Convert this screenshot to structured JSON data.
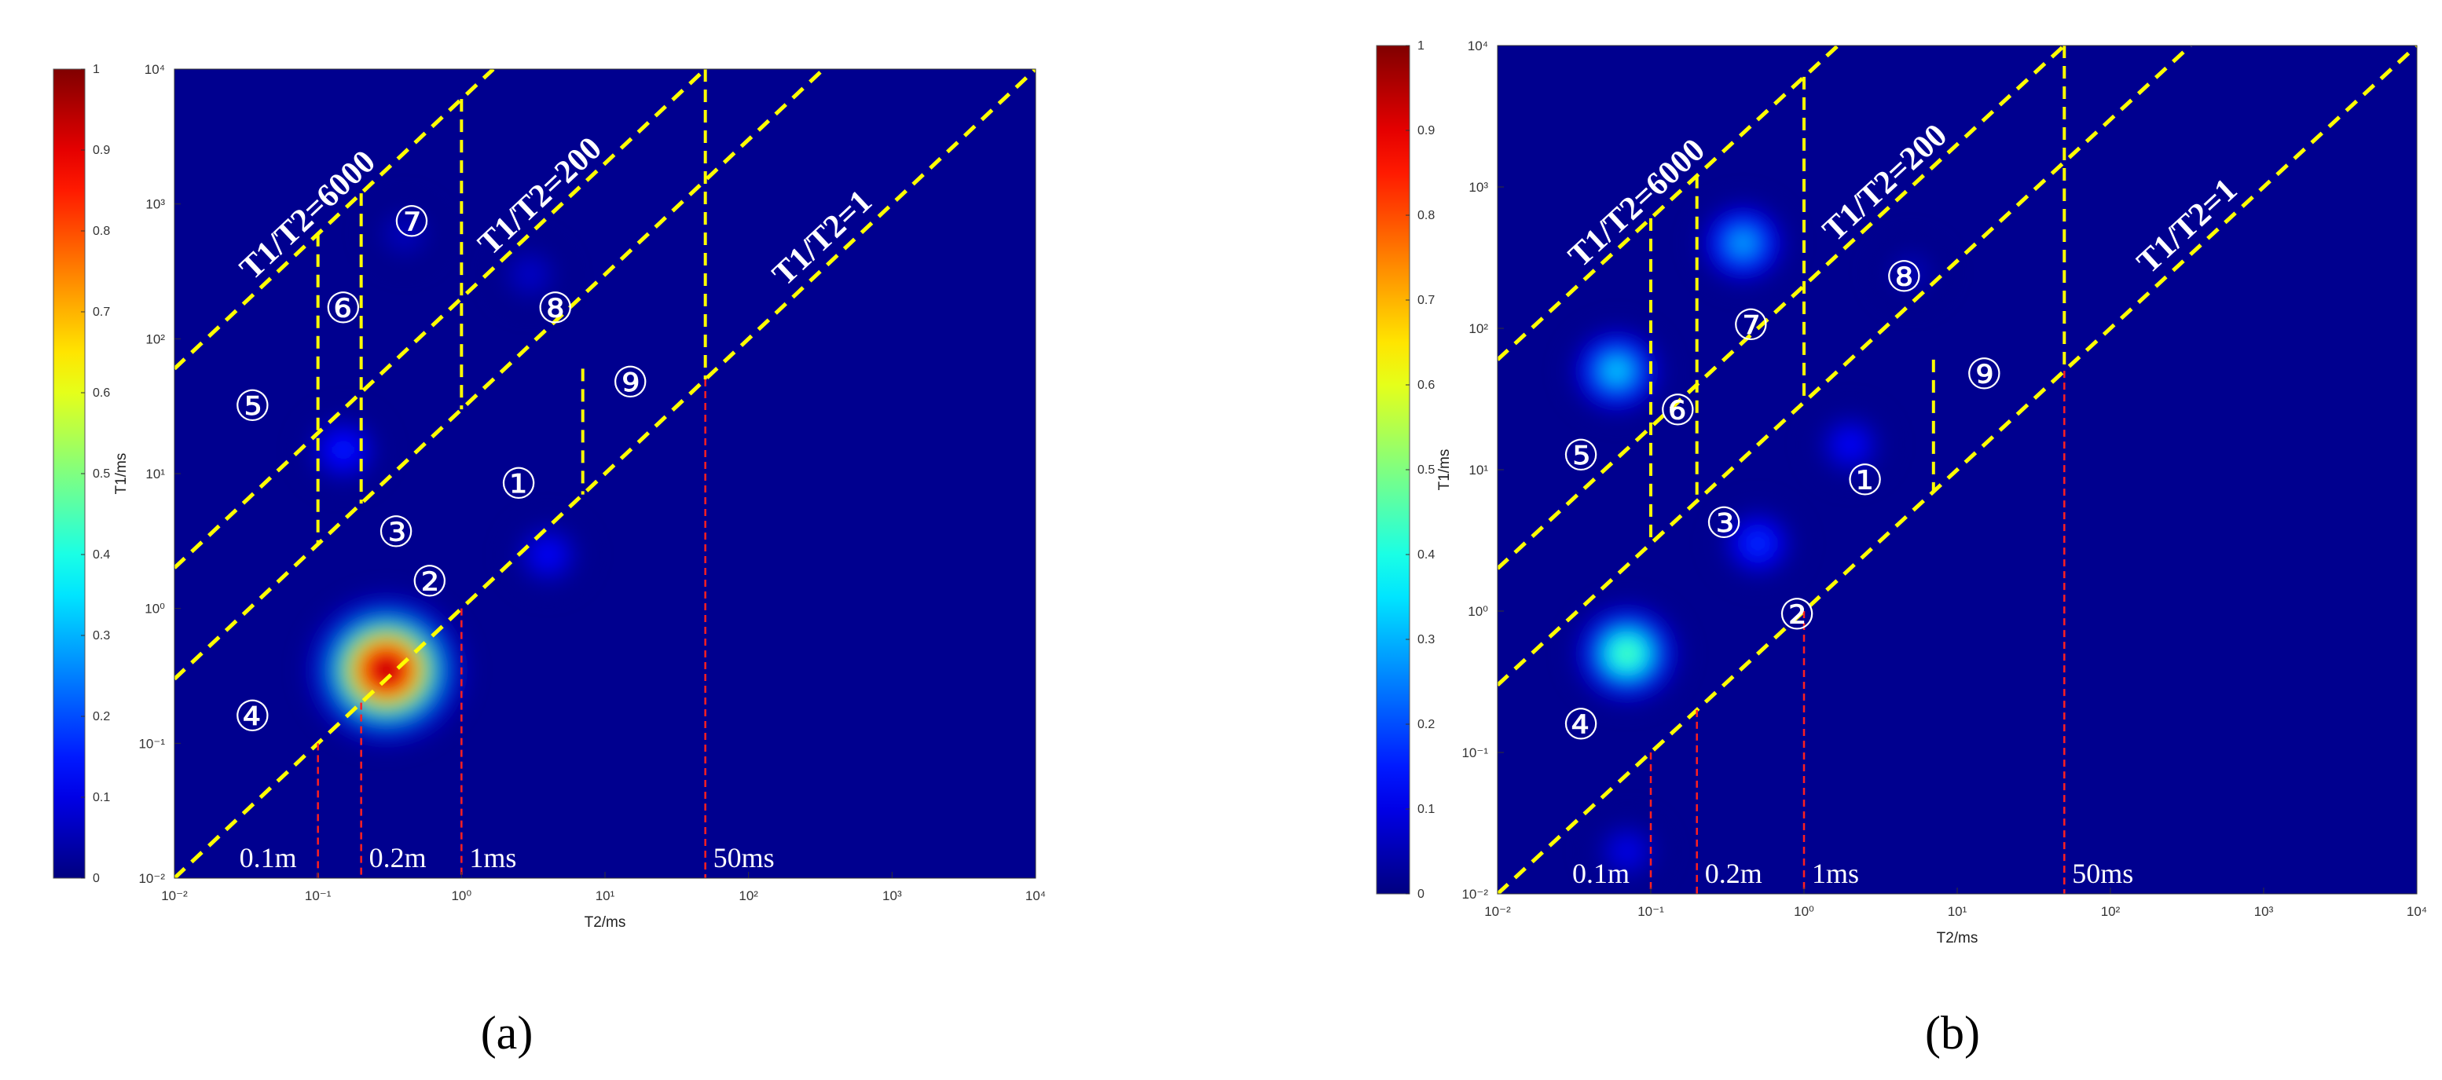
{
  "colorbar_ticks": [
    "0",
    "0.1",
    "0.2",
    "0.3",
    "0.4",
    "0.5",
    "0.6",
    "0.7",
    "0.8",
    "0.9",
    "1"
  ],
  "colors": {
    "background": "#00008F",
    "boundary_line": "#FFFF00",
    "marker_line": "#FF2020",
    "text": "#FFFFFF"
  },
  "chart_data": [
    {
      "type": "heatmap",
      "caption": "(a)",
      "xlabel": "T2/ms",
      "ylabel": "T1/ms",
      "x_scale": "log",
      "y_scale": "log",
      "xlim": [
        0.01,
        10000
      ],
      "ylim": [
        0.01,
        10000
      ],
      "colorbar_range": [
        0,
        1
      ],
      "colormap": "jet",
      "grid": false,
      "ratio_lines": [
        {
          "label": "T1/T2=6000",
          "ratio": 6000
        },
        {
          "label": "T1/T2=200",
          "ratio": 200
        },
        {
          "label": "T1/T2=1",
          "ratio": 1
        },
        {
          "label": "",
          "ratio": 30
        }
      ],
      "vertical_dividers": [
        {
          "t2": 0.1,
          "t1_top": 600
        },
        {
          "t2": 0.2,
          "t1_top": 1200
        },
        {
          "t2": 1,
          "t1_top": 6000
        },
        {
          "t2": 7,
          "t1_top": 60
        },
        {
          "t2": 50,
          "t1_top": 10000
        }
      ],
      "t2_markers": [
        {
          "label": "0.1m",
          "t2": 0.1
        },
        {
          "label": "0.2m",
          "t2": 0.2
        },
        {
          "label": "1ms",
          "t2": 1
        },
        {
          "label": "50ms",
          "t2": 50
        }
      ],
      "regions": [
        {
          "label": "①",
          "t2": 2.5,
          "t1": 8
        },
        {
          "label": "②",
          "t2": 0.6,
          "t1": 1.5
        },
        {
          "label": "③",
          "t2": 0.35,
          "t1": 3.5
        },
        {
          "label": "④",
          "t2": 0.035,
          "t1": 0.15
        },
        {
          "label": "⑤",
          "t2": 0.035,
          "t1": 30
        },
        {
          "label": "⑥",
          "t2": 0.15,
          "t1": 160
        },
        {
          "label": "⑦",
          "t2": 0.45,
          "t1": 700
        },
        {
          "label": "⑧",
          "t2": 4.5,
          "t1": 160
        },
        {
          "label": "⑨",
          "t2": 15,
          "t1": 45
        }
      ],
      "intensity_peaks": [
        {
          "t2": 0.3,
          "t1": 0.35,
          "intensity": 0.95
        },
        {
          "t2": 0.15,
          "t1": 15,
          "intensity": 0.15
        },
        {
          "t2": 4,
          "t1": 2.5,
          "intensity": 0.12
        },
        {
          "t2": 3,
          "t1": 300,
          "intensity": 0.07
        },
        {
          "t2": 0.4,
          "t1": 600,
          "intensity": 0.06
        }
      ]
    },
    {
      "type": "heatmap",
      "caption": "(b)",
      "xlabel": "T2/ms",
      "ylabel": "T1/ms",
      "x_scale": "log",
      "y_scale": "log",
      "xlim": [
        0.01,
        10000
      ],
      "ylim": [
        0.01,
        10000
      ],
      "colorbar_range": [
        0,
        1
      ],
      "colormap": "jet",
      "grid": false,
      "ratio_lines": [
        {
          "label": "T1/T2=6000",
          "ratio": 6000
        },
        {
          "label": "T1/T2=200",
          "ratio": 200
        },
        {
          "label": "T1/T2=1",
          "ratio": 1
        },
        {
          "label": "",
          "ratio": 30
        }
      ],
      "vertical_dividers": [
        {
          "t2": 0.1,
          "t1_top": 600
        },
        {
          "t2": 0.2,
          "t1_top": 1200
        },
        {
          "t2": 1,
          "t1_top": 6000
        },
        {
          "t2": 7,
          "t1_top": 60
        },
        {
          "t2": 50,
          "t1_top": 10000
        }
      ],
      "t2_markers": [
        {
          "label": "0.1m",
          "t2": 0.1
        },
        {
          "label": "0.2m",
          "t2": 0.2
        },
        {
          "label": "1ms",
          "t2": 1
        },
        {
          "label": "50ms",
          "t2": 50
        }
      ],
      "regions": [
        {
          "label": "①",
          "t2": 2.5,
          "t1": 8
        },
        {
          "label": "②",
          "t2": 0.9,
          "t1": 0.9
        },
        {
          "label": "③",
          "t2": 0.3,
          "t1": 4
        },
        {
          "label": "④",
          "t2": 0.035,
          "t1": 0.15
        },
        {
          "label": "⑤",
          "t2": 0.035,
          "t1": 12
        },
        {
          "label": "⑥",
          "t2": 0.15,
          "t1": 25
        },
        {
          "label": "⑦",
          "t2": 0.45,
          "t1": 100
        },
        {
          "label": "⑧",
          "t2": 4.5,
          "t1": 220
        },
        {
          "label": "⑨",
          "t2": 15,
          "t1": 45
        }
      ],
      "intensity_peaks": [
        {
          "t2": 0.07,
          "t1": 0.5,
          "intensity": 0.45
        },
        {
          "t2": 0.06,
          "t1": 50,
          "intensity": 0.32
        },
        {
          "t2": 0.4,
          "t1": 400,
          "intensity": 0.28
        },
        {
          "t2": 0.5,
          "t1": 3,
          "intensity": 0.17
        },
        {
          "t2": 2,
          "t1": 15,
          "intensity": 0.12
        },
        {
          "t2": 0.07,
          "t1": 0.02,
          "intensity": 0.1
        },
        {
          "t2": 5,
          "t1": 250,
          "intensity": 0.05
        }
      ]
    }
  ]
}
